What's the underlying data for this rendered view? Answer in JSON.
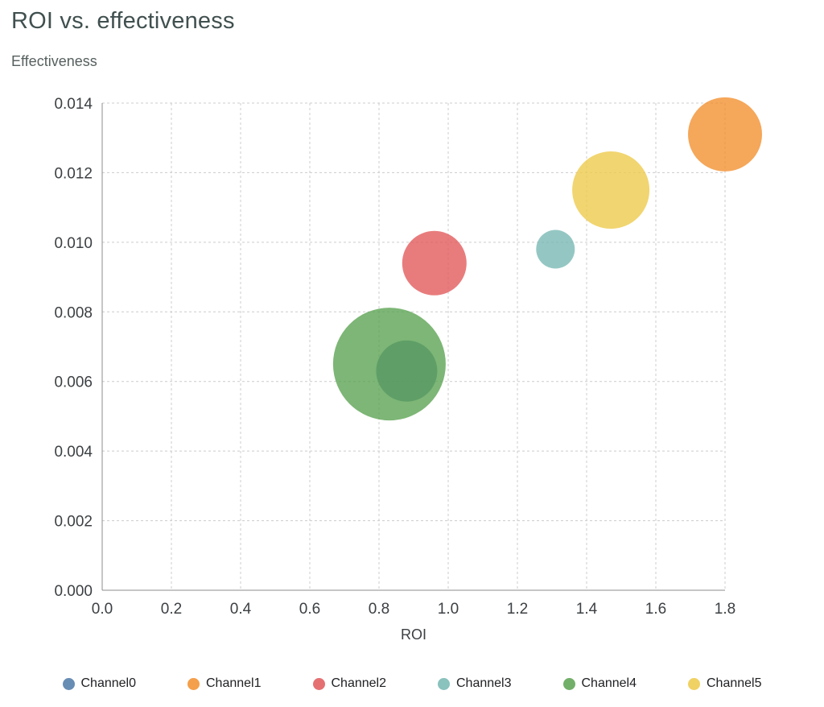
{
  "page": {
    "title": "ROI vs. effectiveness",
    "y_axis_title": "Effectiveness",
    "x_axis_title": "ROI"
  },
  "chart_data": {
    "type": "scatter",
    "subtype": "bubble",
    "title": "ROI vs. effectiveness",
    "xlabel": "ROI",
    "ylabel": "Effectiveness",
    "xlim": [
      0,
      1.8
    ],
    "ylim": [
      0,
      0.014
    ],
    "x_ticks": [
      0.0,
      0.2,
      0.4,
      0.6,
      0.8,
      1.0,
      1.2,
      1.4,
      1.6,
      1.8
    ],
    "x_tick_labels": [
      "0.0",
      "0.2",
      "0.4",
      "0.6",
      "0.8",
      "1.0",
      "1.2",
      "1.4",
      "1.6",
      "1.8"
    ],
    "y_ticks": [
      0.0,
      0.002,
      0.004,
      0.006,
      0.008,
      0.01,
      0.012,
      0.014
    ],
    "y_tick_labels": [
      "0.000",
      "0.002",
      "0.004",
      "0.006",
      "0.008",
      "0.010",
      "0.012",
      "0.014"
    ],
    "grid": "dashed",
    "legend_position": "bottom",
    "series": [
      {
        "name": "Channel0",
        "color": "#4e79a7",
        "x": 0.88,
        "y": 0.0063,
        "radius_px": 38
      },
      {
        "name": "Channel1",
        "color": "#f28e2b",
        "x": 1.8,
        "y": 0.0131,
        "radius_px": 46
      },
      {
        "name": "Channel2",
        "color": "#e15759",
        "x": 0.96,
        "y": 0.0094,
        "radius_px": 40
      },
      {
        "name": "Channel3",
        "color": "#76b7b2",
        "x": 1.31,
        "y": 0.0098,
        "radius_px": 24
      },
      {
        "name": "Channel4",
        "color": "#59a14f",
        "x": 0.83,
        "y": 0.0065,
        "radius_px": 70
      },
      {
        "name": "Channel5",
        "color": "#edc948",
        "x": 1.47,
        "y": 0.0115,
        "radius_px": 48
      }
    ],
    "bubble_opacity": 0.78
  },
  "style": {
    "axis_color": "#8c8c8c",
    "grid_color": "#cccccc",
    "tick_color": "#3c4043"
  }
}
